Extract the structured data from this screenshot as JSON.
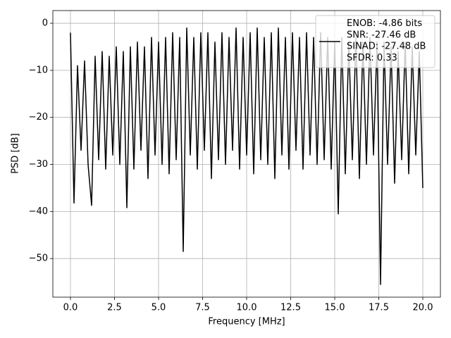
{
  "chart_data": {
    "type": "line",
    "xlabel": "Frequency [MHz]",
    "ylabel": "PSD [dB]",
    "x": [
      0.0,
      0.2,
      0.4,
      0.6,
      0.8,
      1.0,
      1.2,
      1.4,
      1.6,
      1.8,
      2.0,
      2.2,
      2.4,
      2.6,
      2.8,
      3.0,
      3.2,
      3.4,
      3.6,
      3.8,
      4.0,
      4.2,
      4.4,
      4.6,
      4.8,
      5.0,
      5.2,
      5.4,
      5.6,
      5.8,
      6.0,
      6.2,
      6.4,
      6.6,
      6.8,
      7.0,
      7.2,
      7.4,
      7.6,
      7.8,
      8.0,
      8.2,
      8.4,
      8.6,
      8.8,
      9.0,
      9.2,
      9.4,
      9.6,
      9.8,
      10.0,
      10.2,
      10.4,
      10.6,
      10.8,
      11.0,
      11.2,
      11.4,
      11.6,
      11.8,
      12.0,
      12.2,
      12.4,
      12.6,
      12.8,
      13.0,
      13.2,
      13.4,
      13.6,
      13.8,
      14.0,
      14.2,
      14.4,
      14.6,
      14.8,
      15.0,
      15.2,
      15.4,
      15.6,
      15.8,
      16.0,
      16.2,
      16.4,
      16.6,
      16.8,
      17.0,
      17.2,
      17.4,
      17.6,
      17.8,
      18.0,
      18.2,
      18.4,
      18.6,
      18.8,
      19.0,
      19.2,
      19.4,
      19.6,
      19.8,
      20.0
    ],
    "series": [
      {
        "name": "ENOB: -4.86 bits\nSNR: -27.46 dB\nSINAD: -27.48 dB\nSFDR: 0.33",
        "color": "#000000",
        "values": [
          -2,
          -38.2,
          -9,
          -27,
          -8,
          -30,
          -38.7,
          -7,
          -29,
          -6,
          -31,
          -7,
          -28,
          -5,
          -30,
          -6,
          -39.2,
          -5,
          -31,
          -4,
          -27,
          -5,
          -33,
          -3,
          -28,
          -4,
          -30,
          -3,
          -32,
          -2,
          -29,
          -3,
          -48.5,
          -1,
          -28,
          -3,
          -31,
          -2,
          -27,
          -2,
          -33,
          -4,
          -29,
          -2,
          -30,
          -3,
          -27,
          -1,
          -31,
          -3,
          -28,
          -2,
          -32,
          -1,
          -29,
          -3,
          -30,
          -2,
          -33,
          -1,
          -28,
          -3,
          -31,
          -2,
          -27,
          -3,
          -31,
          -2,
          -28,
          -3,
          -30,
          -2,
          -29,
          -3,
          -31,
          -4,
          -40.5,
          -3,
          -32,
          -4,
          -29,
          -3,
          -33,
          -4,
          -30,
          -3,
          -28,
          -4,
          -55.5,
          -4,
          -30,
          -5,
          -34,
          -6,
          -29,
          -4,
          -32,
          -5,
          -28,
          -6,
          -35
        ]
      }
    ],
    "xlim": [
      -1,
      21
    ],
    "ylim": [
      -58.2,
      2.7
    ],
    "xticks": [
      {
        "value": 0,
        "label": "0.0"
      },
      {
        "value": 2.5,
        "label": "2.5"
      },
      {
        "value": 5,
        "label": "5.0"
      },
      {
        "value": 7.5,
        "label": "7.5"
      },
      {
        "value": 10,
        "label": "10.0"
      },
      {
        "value": 12.5,
        "label": "12.5"
      },
      {
        "value": 15,
        "label": "15.0"
      },
      {
        "value": 17.5,
        "label": "17.5"
      },
      {
        "value": 20,
        "label": "20.0"
      }
    ],
    "yticks": [
      0,
      {
        "value": -10,
        "label": "−10"
      },
      {
        "value": -20,
        "label": "−20"
      },
      {
        "value": -30,
        "label": "−30"
      },
      {
        "value": -40,
        "label": "−40"
      },
      {
        "value": -50,
        "label": "−50"
      }
    ],
    "grid": true,
    "legend": "upper right"
  }
}
